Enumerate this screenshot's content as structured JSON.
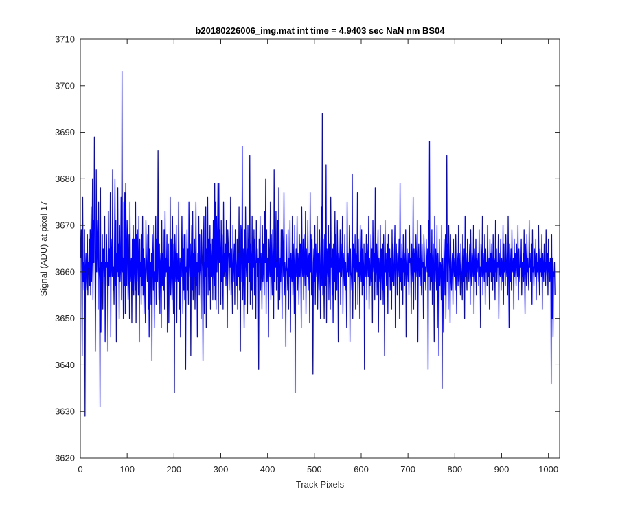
{
  "chart_data": {
    "type": "line",
    "title": "b20180226006_img.mat int time = 4.9403 sec  NaN nm BS04",
    "xlabel": "Track Pixels",
    "ylabel": "Signal (ADU) at pixel 17",
    "xlim": [
      0,
      1024
    ],
    "ylim": [
      3620,
      3710
    ],
    "xticks": [
      "0",
      "100",
      "200",
      "300",
      "400",
      "500",
      "600",
      "700",
      "800",
      "900",
      "1000"
    ],
    "yticks": [
      "3620",
      "3630",
      "3640",
      "3650",
      "3660",
      "3670",
      "3680",
      "3690",
      "3700",
      "3710"
    ],
    "grid": false,
    "series_color": "#0000ff",
    "series": [
      {
        "x_start": 1,
        "x_step": 1,
        "values": [
          3663,
          3669,
          3659,
          3642,
          3676,
          3658,
          3662,
          3656,
          3669,
          3629,
          3661,
          3664,
          3658,
          3656,
          3668,
          3655,
          3662,
          3661,
          3667,
          3657,
          3669,
          3655,
          3674,
          3658,
          3663,
          3680,
          3654,
          3671,
          3662,
          3689,
          3676,
          3643,
          3658,
          3682,
          3660,
          3666,
          3671,
          3652,
          3675,
          3661,
          3658,
          3631,
          3678,
          3647,
          3662,
          3658,
          3668,
          3652,
          3665,
          3663,
          3659,
          3672,
          3645,
          3662,
          3657,
          3668,
          3661,
          3662,
          3643,
          3673,
          3657,
          3665,
          3659,
          3677,
          3646,
          3667,
          3662,
          3659,
          3682,
          3656,
          3661,
          3653,
          3667,
          3680,
          3657,
          3671,
          3645,
          3664,
          3660,
          3678,
          3659,
          3666,
          3650,
          3670,
          3658,
          3661,
          3676,
          3654,
          3703,
          3660,
          3663,
          3650,
          3675,
          3657,
          3677,
          3651,
          3679,
          3664,
          3657,
          3671,
          3664,
          3654,
          3659,
          3668,
          3650,
          3675,
          3658,
          3661,
          3663,
          3649,
          3667,
          3656,
          3670,
          3655,
          3667,
          3661,
          3656,
          3675,
          3649,
          3668,
          3658,
          3669,
          3662,
          3655,
          3672,
          3645,
          3667,
          3659,
          3662,
          3653,
          3668,
          3657,
          3672,
          3655,
          3665,
          3651,
          3663,
          3659,
          3649,
          3671,
          3664,
          3660,
          3658,
          3668,
          3652,
          3670,
          3646,
          3665,
          3659,
          3662,
          3653,
          3664,
          3641,
          3668,
          3663,
          3656,
          3670,
          3648,
          3660,
          3658,
          3672,
          3653,
          3667,
          3662,
          3658,
          3686,
          3661,
          3654,
          3666,
          3651,
          3662,
          3664,
          3648,
          3671,
          3657,
          3664,
          3661,
          3656,
          3669,
          3652,
          3673,
          3659,
          3663,
          3660,
          3668,
          3647,
          3662,
          3666,
          3649,
          3661,
          3658,
          3676,
          3655,
          3667,
          3660,
          3654,
          3672,
          3660,
          3651,
          3666,
          3634,
          3668,
          3661,
          3658,
          3670,
          3649,
          3664,
          3659,
          3658,
          3675,
          3660,
          3652,
          3663,
          3646,
          3662,
          3659,
          3672,
          3661,
          3651,
          3665,
          3656,
          3668,
          3654,
          3668,
          3639,
          3661,
          3660,
          3669,
          3656,
          3665,
          3653,
          3675,
          3662,
          3659,
          3666,
          3642,
          3663,
          3670,
          3656,
          3673,
          3654,
          3664,
          3659,
          3667,
          3652,
          3662,
          3675,
          3657,
          3662,
          3646,
          3664,
          3660,
          3672,
          3655,
          3668,
          3661,
          3659,
          3650,
          3669,
          3664,
          3660,
          3641,
          3665,
          3672,
          3651,
          3662,
          3659,
          3674,
          3648,
          3665,
          3661,
          3676,
          3655,
          3667,
          3660,
          3656,
          3670,
          3652,
          3666,
          3662,
          3659,
          3667,
          3654,
          3671,
          3660,
          3657,
          3679,
          3654,
          3675,
          3652,
          3672,
          3660,
          3666,
          3679,
          3651,
          3679,
          3662,
          3669,
          3664,
          3653,
          3671,
          3658,
          3668,
          3660,
          3652,
          3675,
          3659,
          3664,
          3660,
          3666,
          3657,
          3671,
          3660,
          3648,
          3669,
          3666,
          3662,
          3656,
          3664,
          3661,
          3676,
          3655,
          3665,
          3660,
          3651,
          3670,
          3658,
          3662,
          3666,
          3653,
          3669,
          3663,
          3660,
          3657,
          3667,
          3652,
          3664,
          3659,
          3674,
          3656,
          3663,
          3643,
          3670,
          3668,
          3658,
          3687,
          3654,
          3665,
          3660,
          3648,
          3669,
          3653,
          3674,
          3662,
          3659,
          3665,
          3651,
          3670,
          3662,
          3667,
          3658,
          3685,
          3653,
          3666,
          3662,
          3656,
          3672,
          3652,
          3664,
          3661,
          3669,
          3655,
          3667,
          3660,
          3650,
          3671,
          3662,
          3665,
          3659,
          3663,
          3639,
          3667,
          3662,
          3672,
          3656,
          3664,
          3661,
          3652,
          3670,
          3658,
          3666,
          3660,
          3655,
          3673,
          3662,
          3680,
          3651,
          3669,
          3658,
          3663,
          3660,
          3646,
          3667,
          3662,
          3659,
          3675,
          3654,
          3668,
          3661,
          3655,
          3669,
          3660,
          3650,
          3682,
          3658,
          3665,
          3661,
          3673,
          3656,
          3662,
          3659,
          3671,
          3652,
          3678,
          3660,
          3654,
          3663,
          3658,
          3669,
          3661,
          3650,
          3669,
          3664,
          3659,
          3677,
          3655,
          3662,
          3660,
          3644,
          3668,
          3661,
          3660,
          3656,
          3669,
          3652,
          3663,
          3659,
          3671,
          3647,
          3664,
          3660,
          3658,
          3672,
          3655,
          3666,
          3661,
          3651,
          3670,
          3634,
          3661,
          3665,
          3659,
          3672,
          3656,
          3664,
          3662,
          3653,
          3668,
          3659,
          3666,
          3660,
          3648,
          3674,
          3662,
          3659,
          3667,
          3654,
          3668,
          3661,
          3657,
          3673,
          3651,
          3665,
          3660,
          3659,
          3671,
          3656,
          3663,
          3664,
          3649,
          3677,
          3660,
          3668,
          3655,
          3667,
          3659,
          3638,
          3662,
          3665,
          3658,
          3670,
          3653,
          3666,
          3661,
          3659,
          3672,
          3652,
          3664,
          3660,
          3656,
          3669,
          3663,
          3650,
          3661,
          3674,
          3657,
          3694,
          3655,
          3667,
          3659,
          3650,
          3668,
          3662,
          3657,
          3683,
          3649,
          3665,
          3661,
          3659,
          3670,
          3654,
          3666,
          3660,
          3652,
          3676,
          3661,
          3663,
          3655,
          3665,
          3649,
          3666,
          3662,
          3658,
          3673,
          3654,
          3668,
          3660,
          3656,
          3671,
          3663,
          3645,
          3664,
          3661,
          3660,
          3669,
          3653,
          3666,
          3659,
          3662,
          3672,
          3651,
          3664,
          3661,
          3657,
          3668,
          3656,
          3662,
          3658,
          3648,
          3675,
          3660,
          3664,
          3659,
          3662,
          3670,
          3645,
          3665,
          3660,
          3659,
          3656,
          3681,
          3650,
          3666,
          3661,
          3665,
          3658,
          3668,
          3652,
          3664,
          3662,
          3660,
          3677,
          3653,
          3667,
          3659,
          3662,
          3650,
          3670,
          3661,
          3658,
          3669,
          3655,
          3665,
          3660,
          3657,
          3666,
          3639,
          3661,
          3664,
          3659,
          3668,
          3654,
          3666,
          3662,
          3659,
          3672,
          3652,
          3663,
          3657,
          3660,
          3668,
          3658,
          3665,
          3649,
          3671,
          3662,
          3660,
          3664,
          3654,
          3678,
          3658,
          3661,
          3666,
          3655,
          3662,
          3669,
          3647,
          3663,
          3660,
          3658,
          3670,
          3654,
          3665,
          3661,
          3656,
          3666,
          3653,
          3668,
          3659,
          3642,
          3671,
          3660,
          3664,
          3657,
          3662,
          3666,
          3651,
          3668,
          3661,
          3659,
          3665,
          3656,
          3663,
          3660,
          3652,
          3669,
          3658,
          3666,
          3661,
          3657,
          3663,
          3670,
          3648,
          3660,
          3666,
          3661,
          3655,
          3664,
          3659,
          3662,
          3667,
          3650,
          3679,
          3658,
          3663,
          3656,
          3666,
          3661,
          3653,
          3668,
          3660,
          3664,
          3657,
          3662,
          3669,
          3646,
          3661,
          3665,
          3660,
          3658,
          3664,
          3655,
          3670,
          3662,
          3663,
          3659,
          3651,
          3666,
          3661,
          3658,
          3676,
          3652,
          3665,
          3660,
          3664,
          3654,
          3668,
          3661,
          3659,
          3671,
          3645,
          3662,
          3666,
          3659,
          3663,
          3657,
          3670,
          3660,
          3655,
          3666,
          3661,
          3662,
          3650,
          3668,
          3664,
          3658,
          3661,
          3656,
          3667,
          3662,
          3660,
          3665,
          3639,
          3671,
          3659,
          3688,
          3656,
          3664,
          3661,
          3658,
          3669,
          3653,
          3662,
          3666,
          3660,
          3645,
          3672,
          3658,
          3665,
          3662,
          3656,
          3670,
          3648,
          3664,
          3660,
          3642,
          3667,
          3657,
          3662,
          3661,
          3654,
          3670,
          3635,
          3663,
          3659,
          3647,
          3667,
          3661,
          3655,
          3668,
          3650,
          3663,
          3685,
          3658,
          3666,
          3652,
          3670,
          3664,
          3660,
          3649,
          3668,
          3659,
          3656,
          3662,
          3664,
          3653,
          3667,
          3661,
          3659,
          3663,
          3656,
          3668,
          3660,
          3651,
          3664,
          3662,
          3657,
          3670,
          3658,
          3664,
          3660,
          3655,
          3666,
          3661,
          3659,
          3654,
          3668,
          3662,
          3658,
          3665,
          3650,
          3672,
          3659,
          3664,
          3661,
          3656,
          3667,
          3660,
          3662,
          3658,
          3663,
          3666,
          3653,
          3669,
          3660,
          3657,
          3664,
          3662,
          3659,
          3670,
          3651,
          3665,
          3661,
          3658,
          3667,
          3655,
          3663,
          3660,
          3662,
          3664,
          3657,
          3669,
          3659,
          3661,
          3648,
          3666,
          3663,
          3659,
          3672,
          3655,
          3664,
          3661,
          3658,
          3668,
          3653,
          3665,
          3660,
          3662,
          3657,
          3670,
          3661,
          3659,
          3663,
          3652,
          3667,
          3660,
          3664,
          3658,
          3666,
          3661,
          3656,
          3668,
          3659,
          3663,
          3662,
          3654,
          3671,
          3660,
          3665,
          3658,
          3662,
          3661,
          3668,
          3650,
          3664,
          3660,
          3659,
          3667,
          3656,
          3663,
          3661,
          3658,
          3670,
          3653,
          3666,
          3660,
          3662,
          3657,
          3668,
          3661,
          3659,
          3664,
          3655,
          3672,
          3660,
          3648,
          3666,
          3662,
          3658,
          3665,
          3656,
          3669,
          3661,
          3660,
          3663,
          3652,
          3667,
          3659,
          3664,
          3661,
          3657,
          3666,
          3662,
          3659,
          3670,
          3654,
          3665,
          3660,
          3658,
          3663,
          3661,
          3667,
          3655,
          3662,
          3659,
          3664,
          3658,
          3669,
          3660,
          3651,
          3666,
          3662,
          3657,
          3668,
          3660,
          3663,
          3659,
          3656,
          3671,
          3661,
          3664,
          3658,
          3662,
          3666,
          3653,
          3669,
          3660,
          3661,
          3657,
          3665,
          3662,
          3659,
          3667,
          3654,
          3664,
          3660,
          3662,
          3658,
          3670,
          3661,
          3655,
          3665,
          3660,
          3663,
          3659,
          3668,
          3652,
          3664,
          3661,
          3658,
          3666,
          3660,
          3662,
          3657,
          3669,
          3661,
          3659,
          3664,
          3655,
          3667,
          3660,
          3662,
          3658,
          3663,
          3661,
          3636,
          3668,
          3650,
          3663,
          3646,
          3660,
          3659,
          3662,
          3655
        ]
      }
    ]
  }
}
